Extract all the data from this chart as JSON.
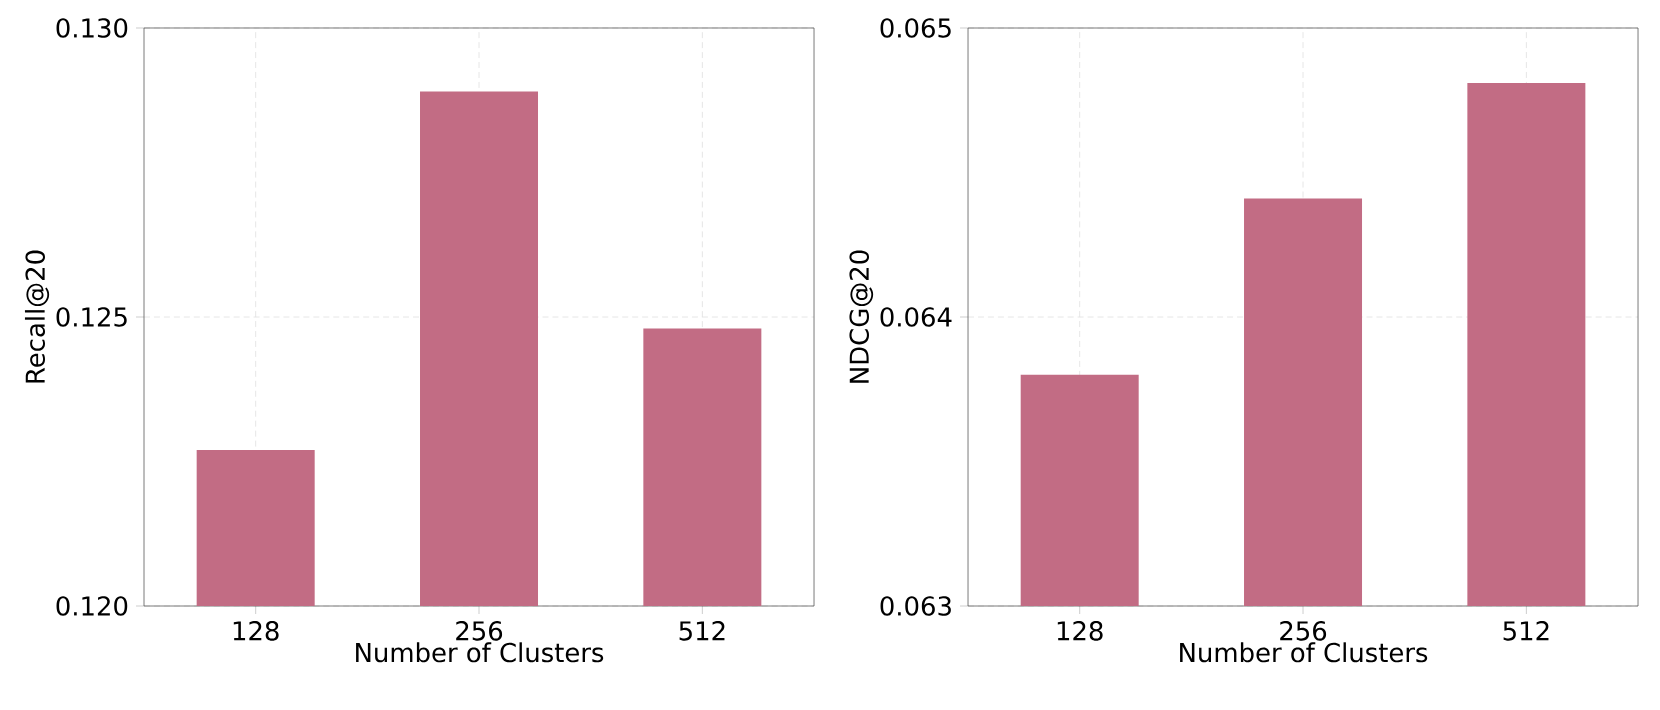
{
  "chart_data": [
    {
      "type": "bar",
      "categories": [
        "128",
        "256",
        "512"
      ],
      "values": [
        0.1227,
        0.1289,
        0.1248
      ],
      "color": "#c26c84",
      "xlabel": "Number of Clusters",
      "ylabel": "Recall@20",
      "ylim": [
        0.12,
        0.13
      ],
      "yticks": [
        {
          "value": 0.12,
          "label": "0.120"
        },
        {
          "value": 0.125,
          "label": "0.125"
        },
        {
          "value": 0.13,
          "label": "0.130"
        }
      ],
      "grid": true
    },
    {
      "type": "bar",
      "categories": [
        "128",
        "256",
        "512"
      ],
      "values": [
        0.0638,
        0.06441,
        0.06481
      ],
      "color": "#c26c84",
      "xlabel": "Number of Clusters",
      "ylabel": "NDCG@20",
      "ylim": [
        0.063,
        0.065
      ],
      "yticks": [
        {
          "value": 0.063,
          "label": "0.063"
        },
        {
          "value": 0.064,
          "label": "0.064"
        },
        {
          "value": 0.065,
          "label": "0.065"
        }
      ],
      "grid": true
    }
  ]
}
